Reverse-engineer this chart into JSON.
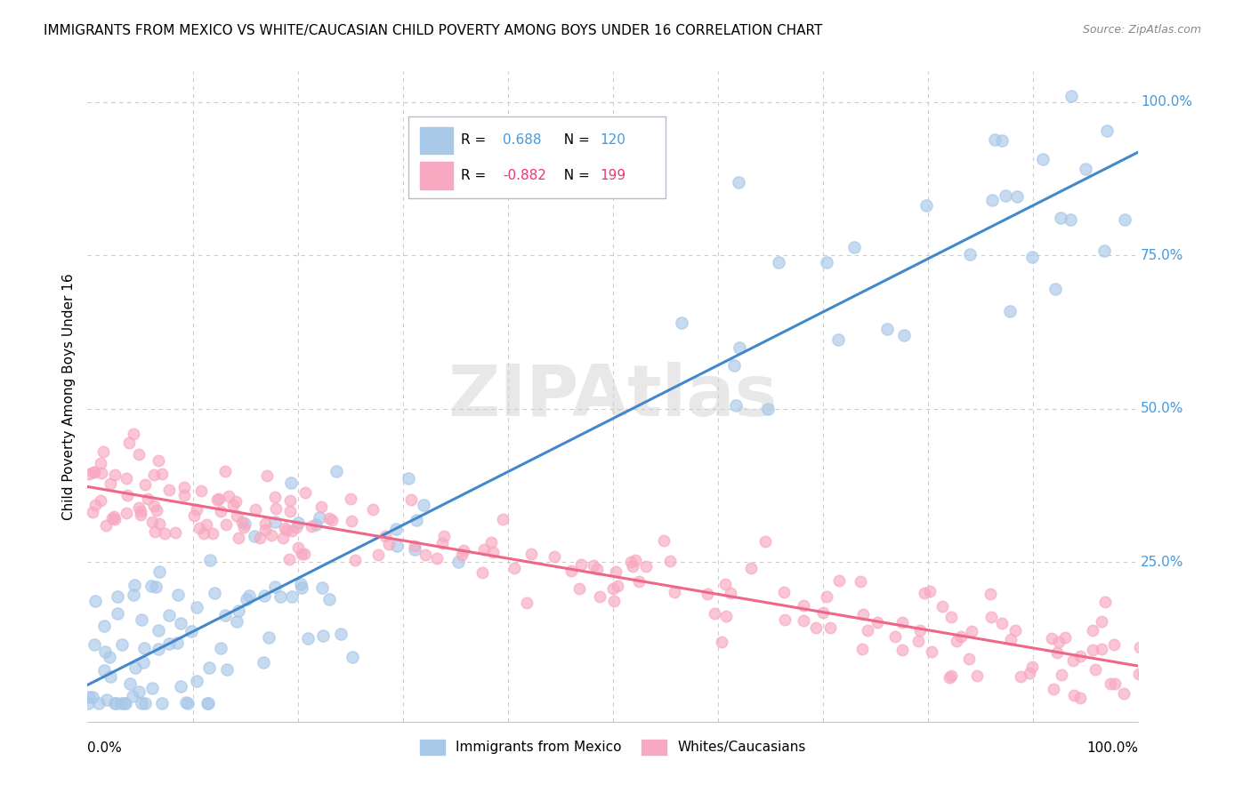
{
  "title": "IMMIGRANTS FROM MEXICO VS WHITE/CAUCASIAN CHILD POVERTY AMONG BOYS UNDER 16 CORRELATION CHART",
  "source": "Source: ZipAtlas.com",
  "ylabel": "Child Poverty Among Boys Under 16",
  "blue_R": "0.688",
  "blue_N": "120",
  "pink_R": "-0.882",
  "pink_N": "199",
  "blue_scatter_color": "#a8c8e8",
  "pink_scatter_color": "#f8a8c0",
  "blue_line_color": "#4488cc",
  "pink_line_color": "#ee6688",
  "blue_text_color": "#4499dd",
  "pink_text_color": "#ee3377",
  "watermark": "ZIPAtlas",
  "background_color": "#ffffff",
  "grid_color": "#cccccc",
  "legend_box_color": "#e8e8f0"
}
